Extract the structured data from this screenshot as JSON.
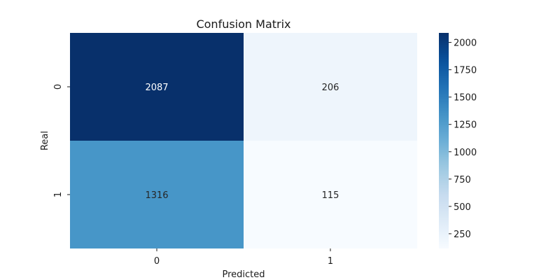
{
  "chart_data": {
    "type": "heatmap",
    "title": "Confusion Matrix",
    "xlabel": "Predicted",
    "ylabel": "Real",
    "x_categories": [
      "0",
      "1"
    ],
    "y_categories": [
      "0",
      "1"
    ],
    "values": [
      [
        2087,
        206
      ],
      [
        1316,
        115
      ]
    ],
    "colormap": "Blues",
    "colorbar": {
      "min": 115,
      "max": 2087,
      "ticks": [
        250,
        500,
        750,
        1000,
        1250,
        1500,
        1750,
        2000
      ]
    }
  }
}
